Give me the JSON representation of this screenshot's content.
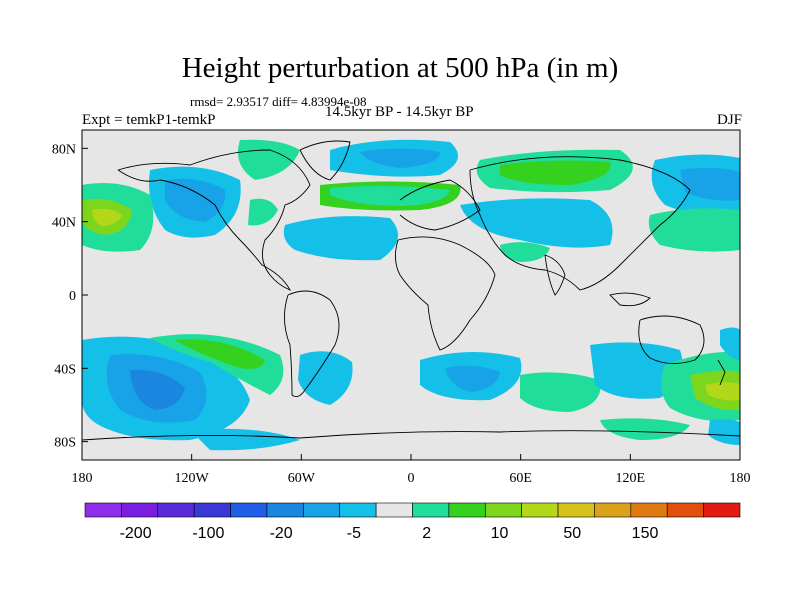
{
  "title": "Height perturbation at 500 hPa (in m)",
  "stats": "rmsd= 2.93517 diff= 4.83994e-08",
  "experiment": "Expt = temkP1-temkP",
  "period": "14.5kyr BP - 14.5kyr BP",
  "season": "DJF",
  "axes": {
    "x_ticks": [
      {
        "value": 180,
        "label": "180"
      },
      {
        "value": -120,
        "label": "120W"
      },
      {
        "value": -60,
        "label": "60W"
      },
      {
        "value": 0,
        "label": "0"
      },
      {
        "value": 60,
        "label": "60E"
      },
      {
        "value": 120,
        "label": "120E"
      },
      {
        "value": 180,
        "label": "180"
      }
    ],
    "y_ticks": [
      {
        "value": 80,
        "label": "80N"
      },
      {
        "value": 40,
        "label": "40N"
      },
      {
        "value": 0,
        "label": "0"
      },
      {
        "value": -40,
        "label": "40S"
      },
      {
        "value": -80,
        "label": "80S"
      }
    ]
  },
  "colorbar": {
    "colors": [
      "#8e2eea",
      "#7a1fe0",
      "#5a2bd8",
      "#3a38d6",
      "#1f5ee6",
      "#1a86e0",
      "#18a2e8",
      "#15c0e8",
      "#e6e6e6",
      "#20dd9a",
      "#34d11e",
      "#7cd61e",
      "#b3d81a",
      "#d6c21a",
      "#dca11a",
      "#e07a12",
      "#e24f0c",
      "#e31a0f"
    ],
    "labels": [
      "-200",
      "-100",
      "-20",
      "-5",
      "2",
      "10",
      "50",
      "150"
    ]
  },
  "map": {
    "background_color": "#e6e6e6",
    "field_colors": {
      "light_blue": "#15c0e8",
      "mid_blue": "#18a2e8",
      "blue": "#1a86e0",
      "teal": "#20dd9a",
      "green": "#34d11e",
      "yellow_green": "#7cd61e",
      "yellow": "#b3d81a"
    }
  }
}
